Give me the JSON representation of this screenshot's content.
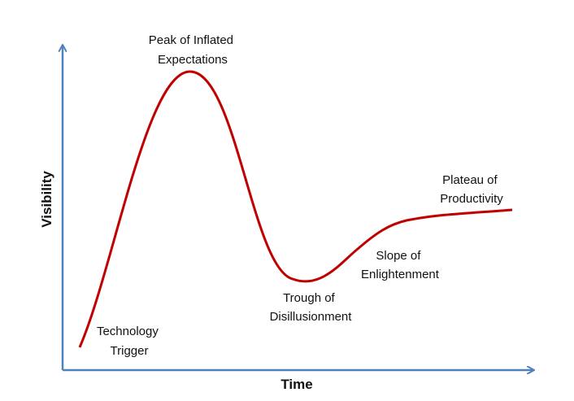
{
  "axes": {
    "x": "Time",
    "y": "Visibility"
  },
  "phases": [
    {
      "lines": [
        "Technology",
        "Trigger"
      ]
    },
    {
      "lines": [
        "Peak of Inflated",
        "Expectations"
      ]
    },
    {
      "lines": [
        "Trough of",
        "Disillusionment"
      ]
    },
    {
      "lines": [
        "Slope of",
        "Enlightenment"
      ]
    },
    {
      "lines": [
        "Plateau of",
        "Productivity"
      ]
    }
  ]
}
